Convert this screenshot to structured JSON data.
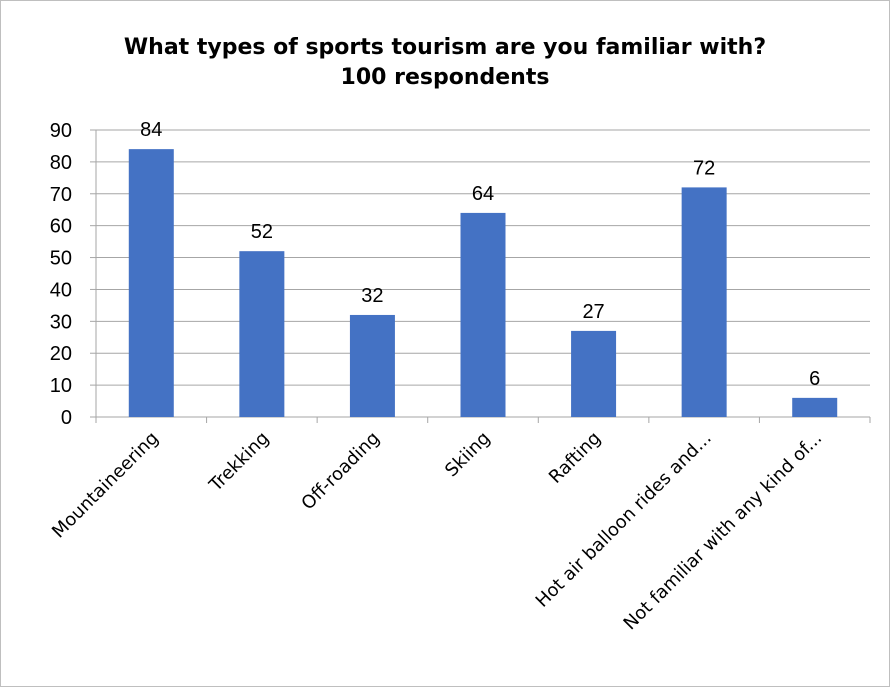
{
  "chart_data": {
    "type": "bar",
    "title": "What types of sports tourism are you familiar with?",
    "subtitle": "100 respondents",
    "categories": [
      "Mountaineering",
      "Trekking",
      "Off-roading",
      "Skiing",
      "Rafting",
      "Hot air balloon rides and...",
      "Not familiar with any kind of..."
    ],
    "values": [
      84,
      52,
      32,
      64,
      27,
      72,
      6
    ],
    "ylim": [
      0,
      90
    ],
    "yticks": [
      0,
      10,
      20,
      30,
      40,
      50,
      60,
      70,
      80,
      90
    ],
    "data_labels": true,
    "grid": true,
    "legend": "none",
    "bar_color": "#4472C4",
    "grid_color": "#A6A6A6"
  }
}
